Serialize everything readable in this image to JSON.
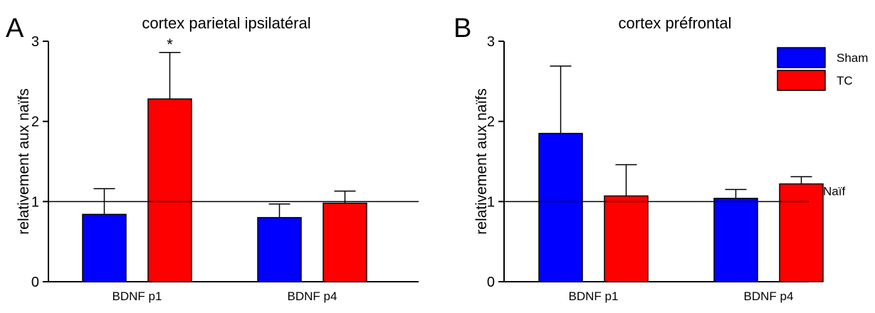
{
  "chart_data": [
    {
      "type": "bar",
      "panel_letter": "A",
      "title": "cortex parietal ipsilatéral",
      "ylabel": "relativement aux naïfs",
      "xlabel": "",
      "categories": [
        "BDNF p1",
        "BDNF p4"
      ],
      "ylim": [
        0,
        3
      ],
      "yticks": [
        "0",
        "1",
        "2",
        "3"
      ],
      "error_bars": "upper",
      "series": [
        {
          "name": "Sham",
          "color": "#0000ff",
          "values": [
            0.84,
            0.8
          ],
          "errors": [
            0.32,
            0.17
          ]
        },
        {
          "name": "TC",
          "color": "#ff0000",
          "values": [
            2.28,
            0.98
          ],
          "errors": [
            0.58,
            0.15
          ]
        }
      ],
      "reference_line": {
        "y": 1,
        "label": ""
      },
      "annotations": [
        {
          "text": "*",
          "series": 1,
          "category": 0
        }
      ],
      "legend": null
    },
    {
      "type": "bar",
      "panel_letter": "B",
      "title": "cortex préfrontal",
      "ylabel": "relativement aux naïfs",
      "xlabel": "",
      "categories": [
        "BDNF p1",
        "BDNF p4"
      ],
      "ylim": [
        0,
        3
      ],
      "yticks": [
        "0",
        "1",
        "2",
        "3"
      ],
      "error_bars": "upper",
      "series": [
        {
          "name": "Sham",
          "color": "#0000ff",
          "values": [
            1.85,
            1.04
          ],
          "errors": [
            0.84,
            0.11
          ]
        },
        {
          "name": "TC",
          "color": "#ff0000",
          "values": [
            1.07,
            1.22
          ],
          "errors": [
            0.39,
            0.09
          ]
        }
      ],
      "reference_line": {
        "y": 1,
        "label": "Naïf"
      },
      "annotations": [],
      "legend": {
        "position": "top-right",
        "entries": [
          "Sham",
          "TC"
        ]
      }
    }
  ]
}
